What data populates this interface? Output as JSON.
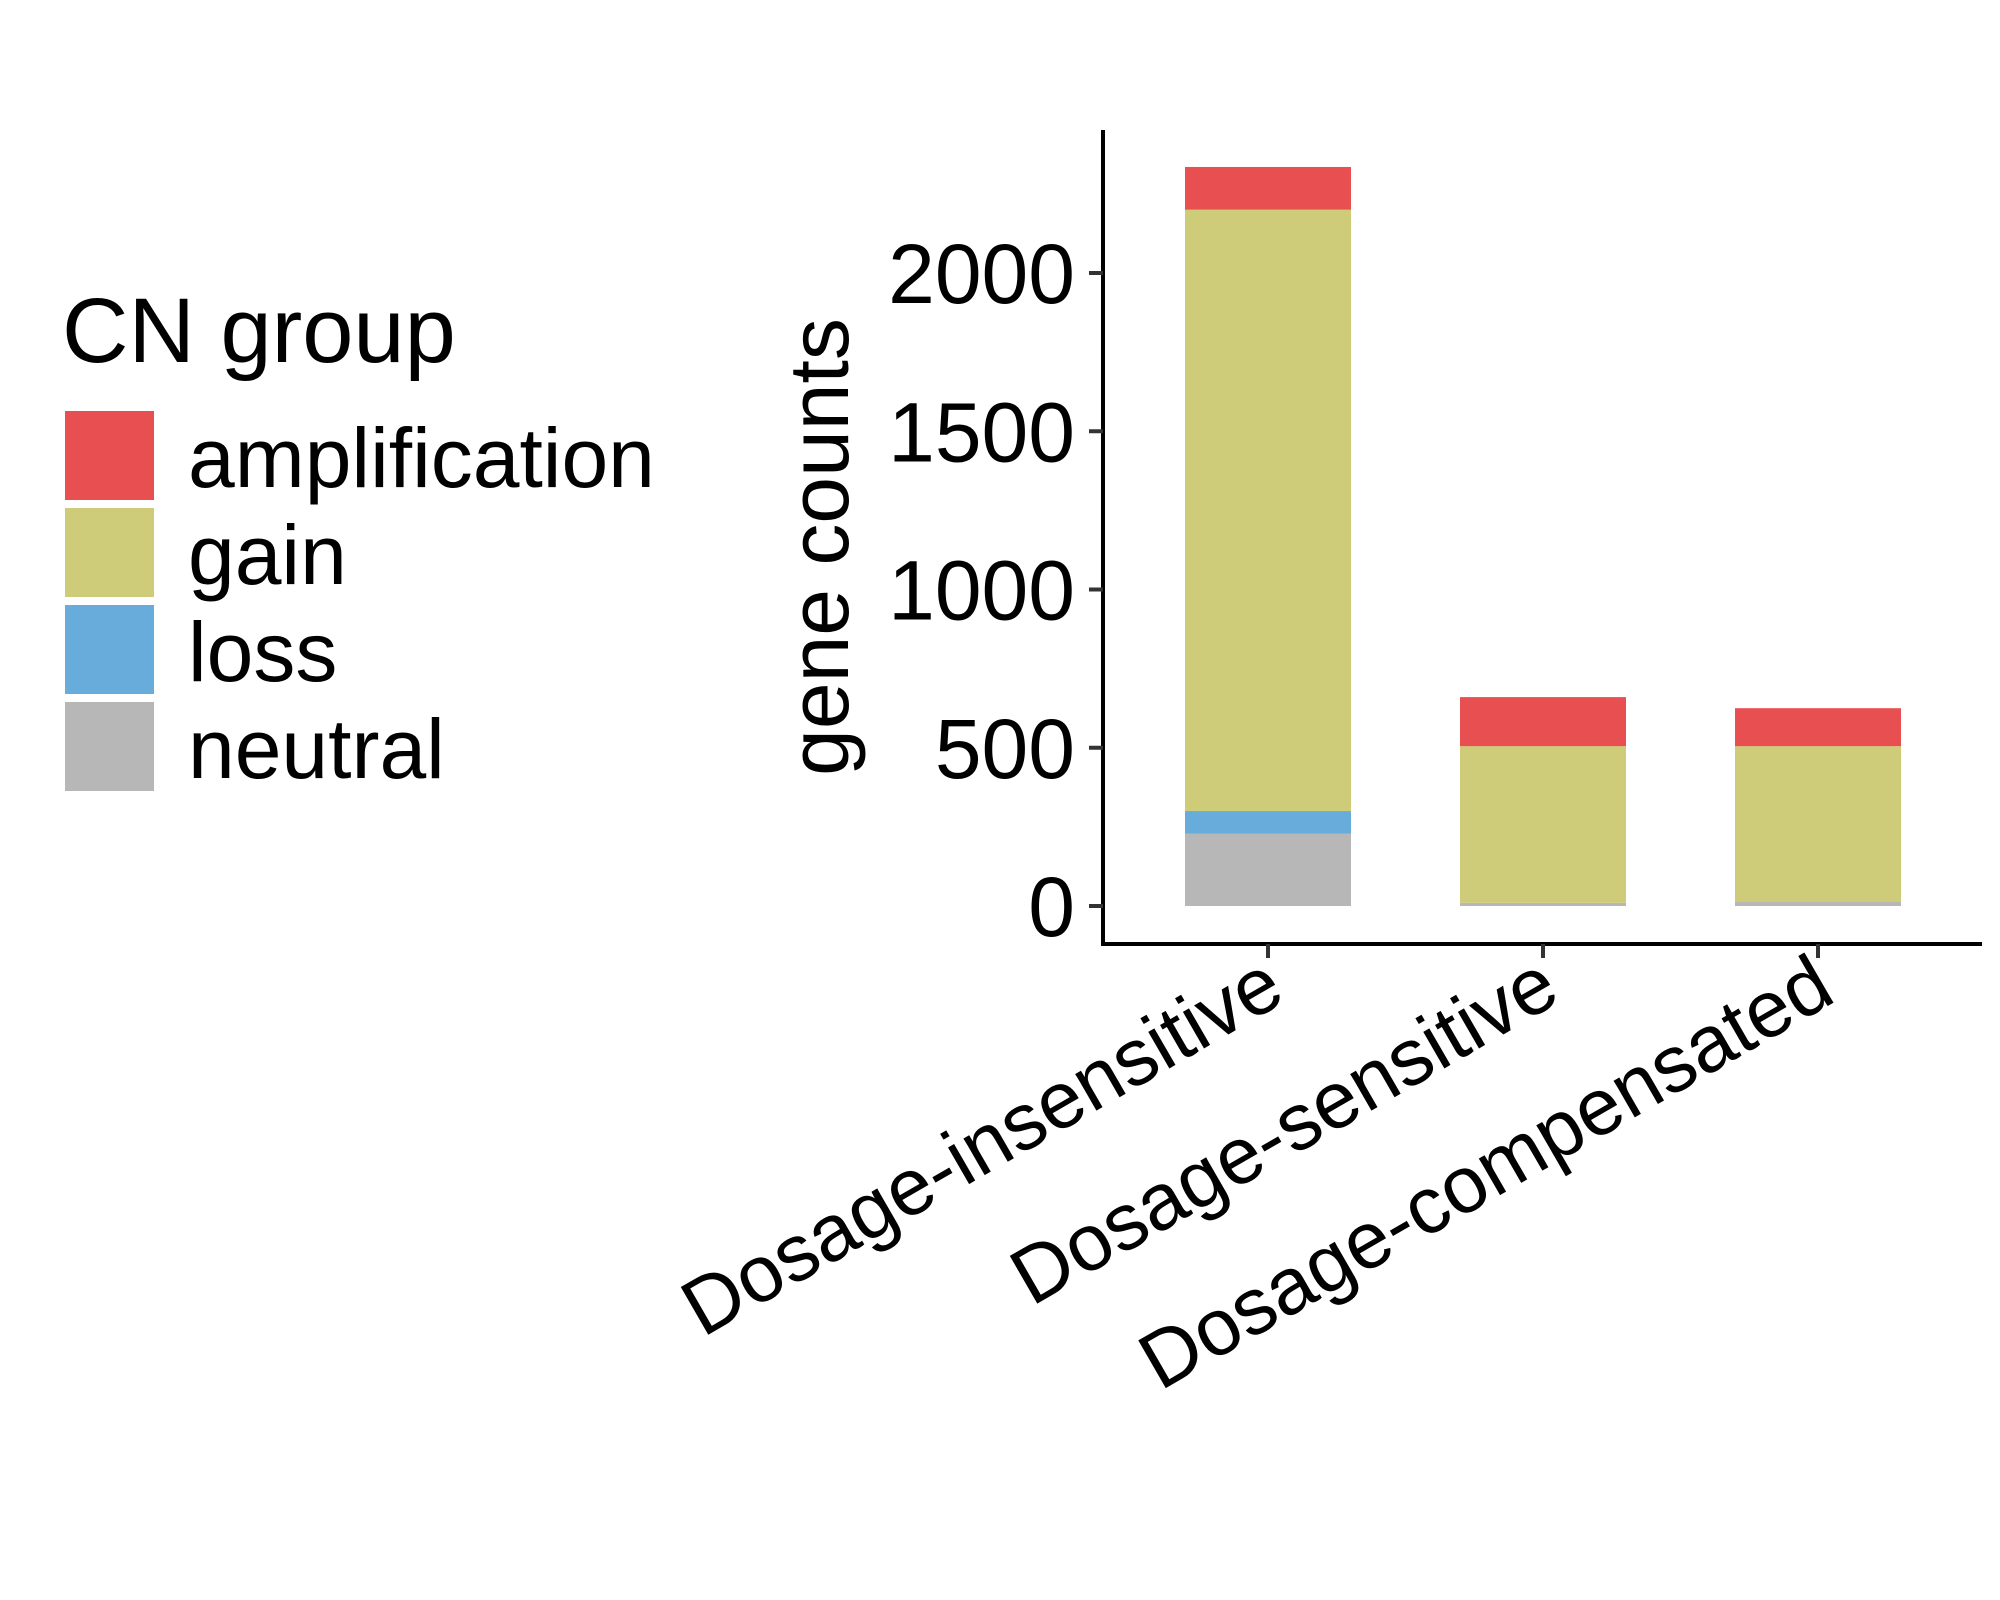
{
  "chart_data": {
    "type": "bar",
    "stacked": true,
    "categories": [
      "Dosage-insensitive",
      "Dosage-sensitive",
      "Dosage-compensated"
    ],
    "series": [
      {
        "name": "neutral",
        "color": "#b7b7b7",
        "values": [
          228,
          10,
          15
        ]
      },
      {
        "name": "loss",
        "color": "#67acdb",
        "values": [
          72,
          0,
          0
        ]
      },
      {
        "name": "gain",
        "color": "#cecc79",
        "values": [
          1900,
          495,
          490
        ]
      },
      {
        "name": "amplification",
        "color": "#e84f50",
        "values": [
          135,
          155,
          120
        ]
      }
    ],
    "title": "",
    "xlabel": "",
    "ylabel": "gene counts",
    "ylim": [
      0,
      2420
    ],
    "yticks": [
      0,
      500,
      1000,
      1500,
      2000
    ],
    "legend": {
      "title": "CN group",
      "position": "left",
      "order": [
        "amplification",
        "gain",
        "loss",
        "neutral"
      ]
    },
    "grid": false,
    "axis_color": "#000000"
  }
}
